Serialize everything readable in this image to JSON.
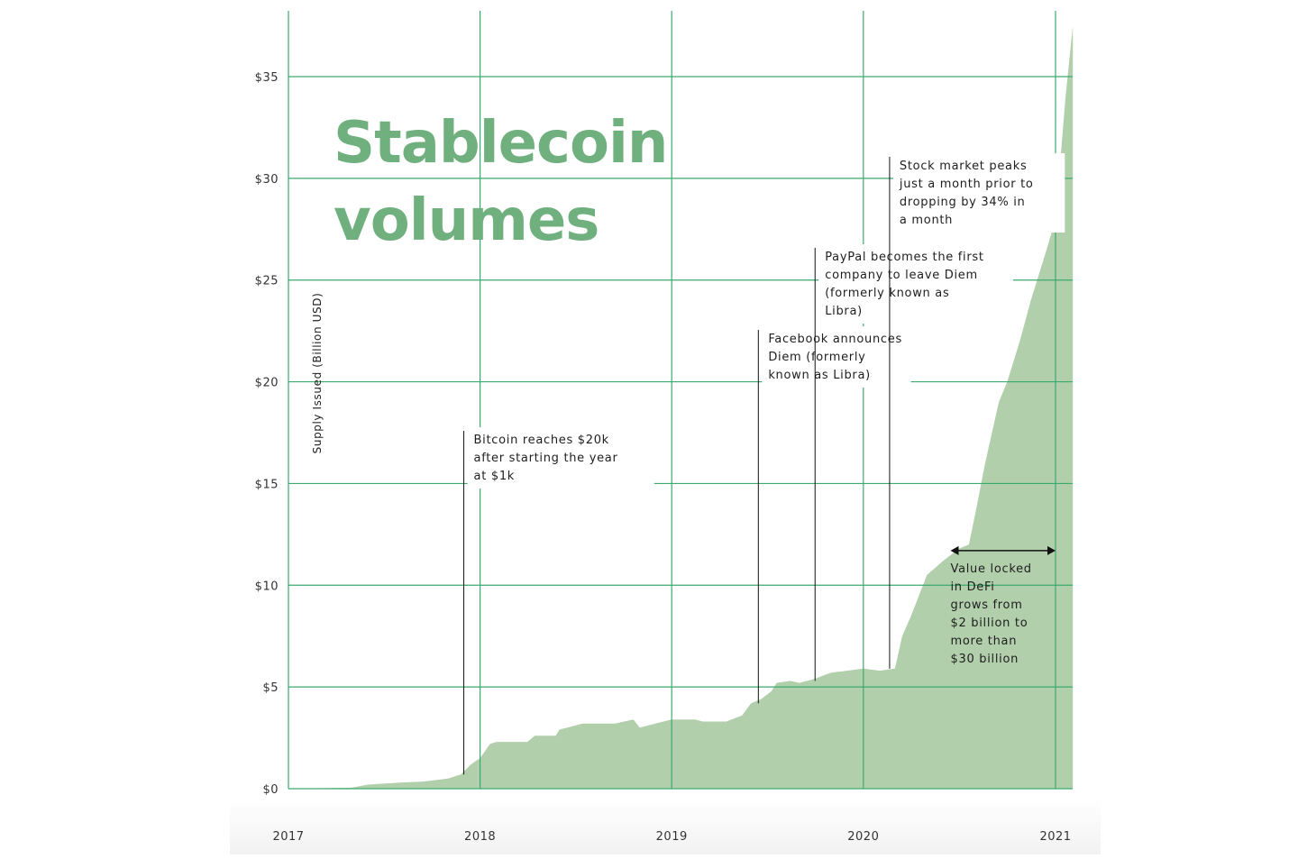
{
  "colors": {
    "area_fill": "#b2cfac",
    "grid": "#3aaa6e",
    "title": "#6fb07e",
    "bottom_band": "#f2f2f2"
  },
  "chart_data": {
    "type": "area",
    "title_lines": [
      "Stablecoin",
      "volumes"
    ],
    "ylabel": "Supply Issued (Billion USD)",
    "xlabel": "",
    "xlim": [
      "2017-01-01",
      "2021-01-01"
    ],
    "ylim": [
      0,
      35
    ],
    "grid": true,
    "x_ticks": [
      "2017",
      "2018",
      "2019",
      "2020",
      "2021"
    ],
    "y_ticks": [
      "$0",
      "$5",
      "$10",
      "$15",
      "$20",
      "$25",
      "$30",
      "$35"
    ],
    "y_tick_values": [
      0,
      5,
      10,
      15,
      20,
      25,
      30,
      35
    ],
    "series": [
      {
        "x": [
          "2017-01-01",
          "2017-03-01",
          "2017-05-01",
          "2017-06-01",
          "2017-08-01",
          "2017-09-15",
          "2017-11-01",
          "2017-11-25",
          "2017-12-15",
          "2018-01-01",
          "2018-01-20",
          "2018-02-01",
          "2018-04-01",
          "2018-04-15",
          "2018-05-25",
          "2018-06-01",
          "2018-07-15",
          "2018-09-15",
          "2018-10-20",
          "2018-11-01",
          "2018-12-01",
          "2019-01-01",
          "2019-02-15",
          "2019-03-01",
          "2019-04-15",
          "2019-05-15",
          "2019-06-01",
          "2019-06-20",
          "2019-07-10",
          "2019-07-20",
          "2019-08-15",
          "2019-09-01",
          "2019-10-01",
          "2019-10-20",
          "2019-11-01",
          "2019-12-01",
          "2020-01-01",
          "2020-02-01",
          "2020-03-01",
          "2020-03-15",
          "2020-04-01",
          "2020-05-01",
          "2020-06-01",
          "2020-07-01",
          "2020-07-20",
          "2020-08-01",
          "2020-08-20",
          "2020-09-15",
          "2020-10-01",
          "2020-10-25",
          "2020-11-15",
          "2020-12-15",
          "2021-01-01",
          "2021-01-20",
          "2021-02-03"
        ],
        "values": [
          0,
          0.02,
          0.05,
          0.2,
          0.3,
          0.35,
          0.5,
          0.7,
          1.2,
          1.5,
          2.2,
          2.3,
          2.3,
          2.6,
          2.6,
          2.9,
          3.2,
          3.2,
          3.4,
          3.0,
          3.2,
          3.4,
          3.4,
          3.3,
          3.3,
          3.6,
          4.2,
          4.4,
          4.8,
          5.2,
          5.3,
          5.2,
          5.4,
          5.6,
          5.7,
          5.8,
          5.9,
          5.8,
          5.9,
          7.5,
          8.5,
          10.5,
          11.2,
          11.8,
          12.0,
          13.5,
          16.0,
          19.0,
          20.0,
          22.0,
          24.0,
          26.5,
          28.0,
          34.0,
          37.5
        ]
      }
    ],
    "annotations": [
      {
        "date": "2017-12-01",
        "y": 0.7,
        "lines": [
          "Bitcoin reaches $20k",
          "after starting the year",
          "at $1k"
        ]
      },
      {
        "date": "2019-06-15",
        "y": 4.2,
        "lines": [
          "Facebook announces",
          "Diem (formerly",
          "known as Libra)"
        ]
      },
      {
        "date": "2019-10-01",
        "y": 5.3,
        "lines": [
          "PayPal becomes the first",
          "company to leave Diem",
          "(formerly known as",
          "Libra)"
        ]
      },
      {
        "date": "2020-02-20",
        "y": 5.9,
        "lines": [
          "Stock market peaks",
          "just a month prior to",
          "dropping by 34% in",
          "a month"
        ]
      }
    ],
    "span_annotation": {
      "from": "2020-06-15",
      "to": "2021-01-01",
      "y": 11.7,
      "lines": [
        "Value locked",
        "in DeFi",
        "grows from",
        "$2 billion to",
        "more than",
        "$30 billion"
      ]
    }
  }
}
